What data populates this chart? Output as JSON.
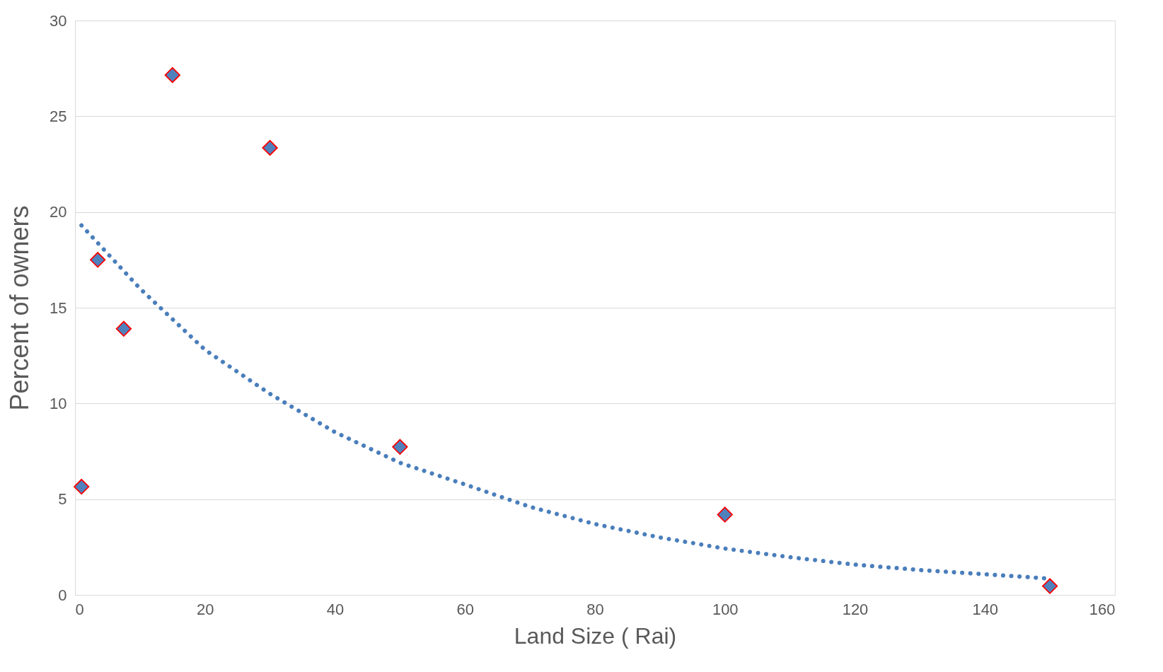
{
  "chart_data": {
    "type": "scatter",
    "xlabel": "Land Size ( Rai)",
    "ylabel": "Percent of owners",
    "xlim": [
      0,
      160
    ],
    "xticks": [
      0,
      20,
      40,
      60,
      80,
      100,
      120,
      140,
      160
    ],
    "ylim": [
      0,
      30
    ],
    "yticks": [
      0,
      5,
      10,
      15,
      20,
      25,
      30
    ],
    "grid": "y",
    "legend": false,
    "marker": "diamond",
    "series": [
      {
        "color": "#4f81bd",
        "x": [
          1,
          3.5,
          7.5,
          15,
          30,
          50,
          100,
          150
        ],
        "values": [
          5.65,
          17.5,
          13.9,
          27.15,
          23.35,
          7.73,
          4.19,
          0.46
        ]
      },
      {
        "type": "line",
        "color": "#4a7ebb",
        "marker": "none",
        "line_style": "dotted",
        "x": [
          1,
          10,
          20,
          30,
          40,
          50,
          60,
          70,
          80,
          90,
          100,
          110,
          120,
          130,
          140,
          150
        ],
        "values": [
          19.3,
          16.0,
          12.8,
          10.5,
          8.5,
          6.9,
          5.77,
          4.6,
          3.7,
          3.0,
          2.42,
          1.97,
          1.58,
          1.3,
          1.08,
          0.85
        ]
      }
    ]
  }
}
